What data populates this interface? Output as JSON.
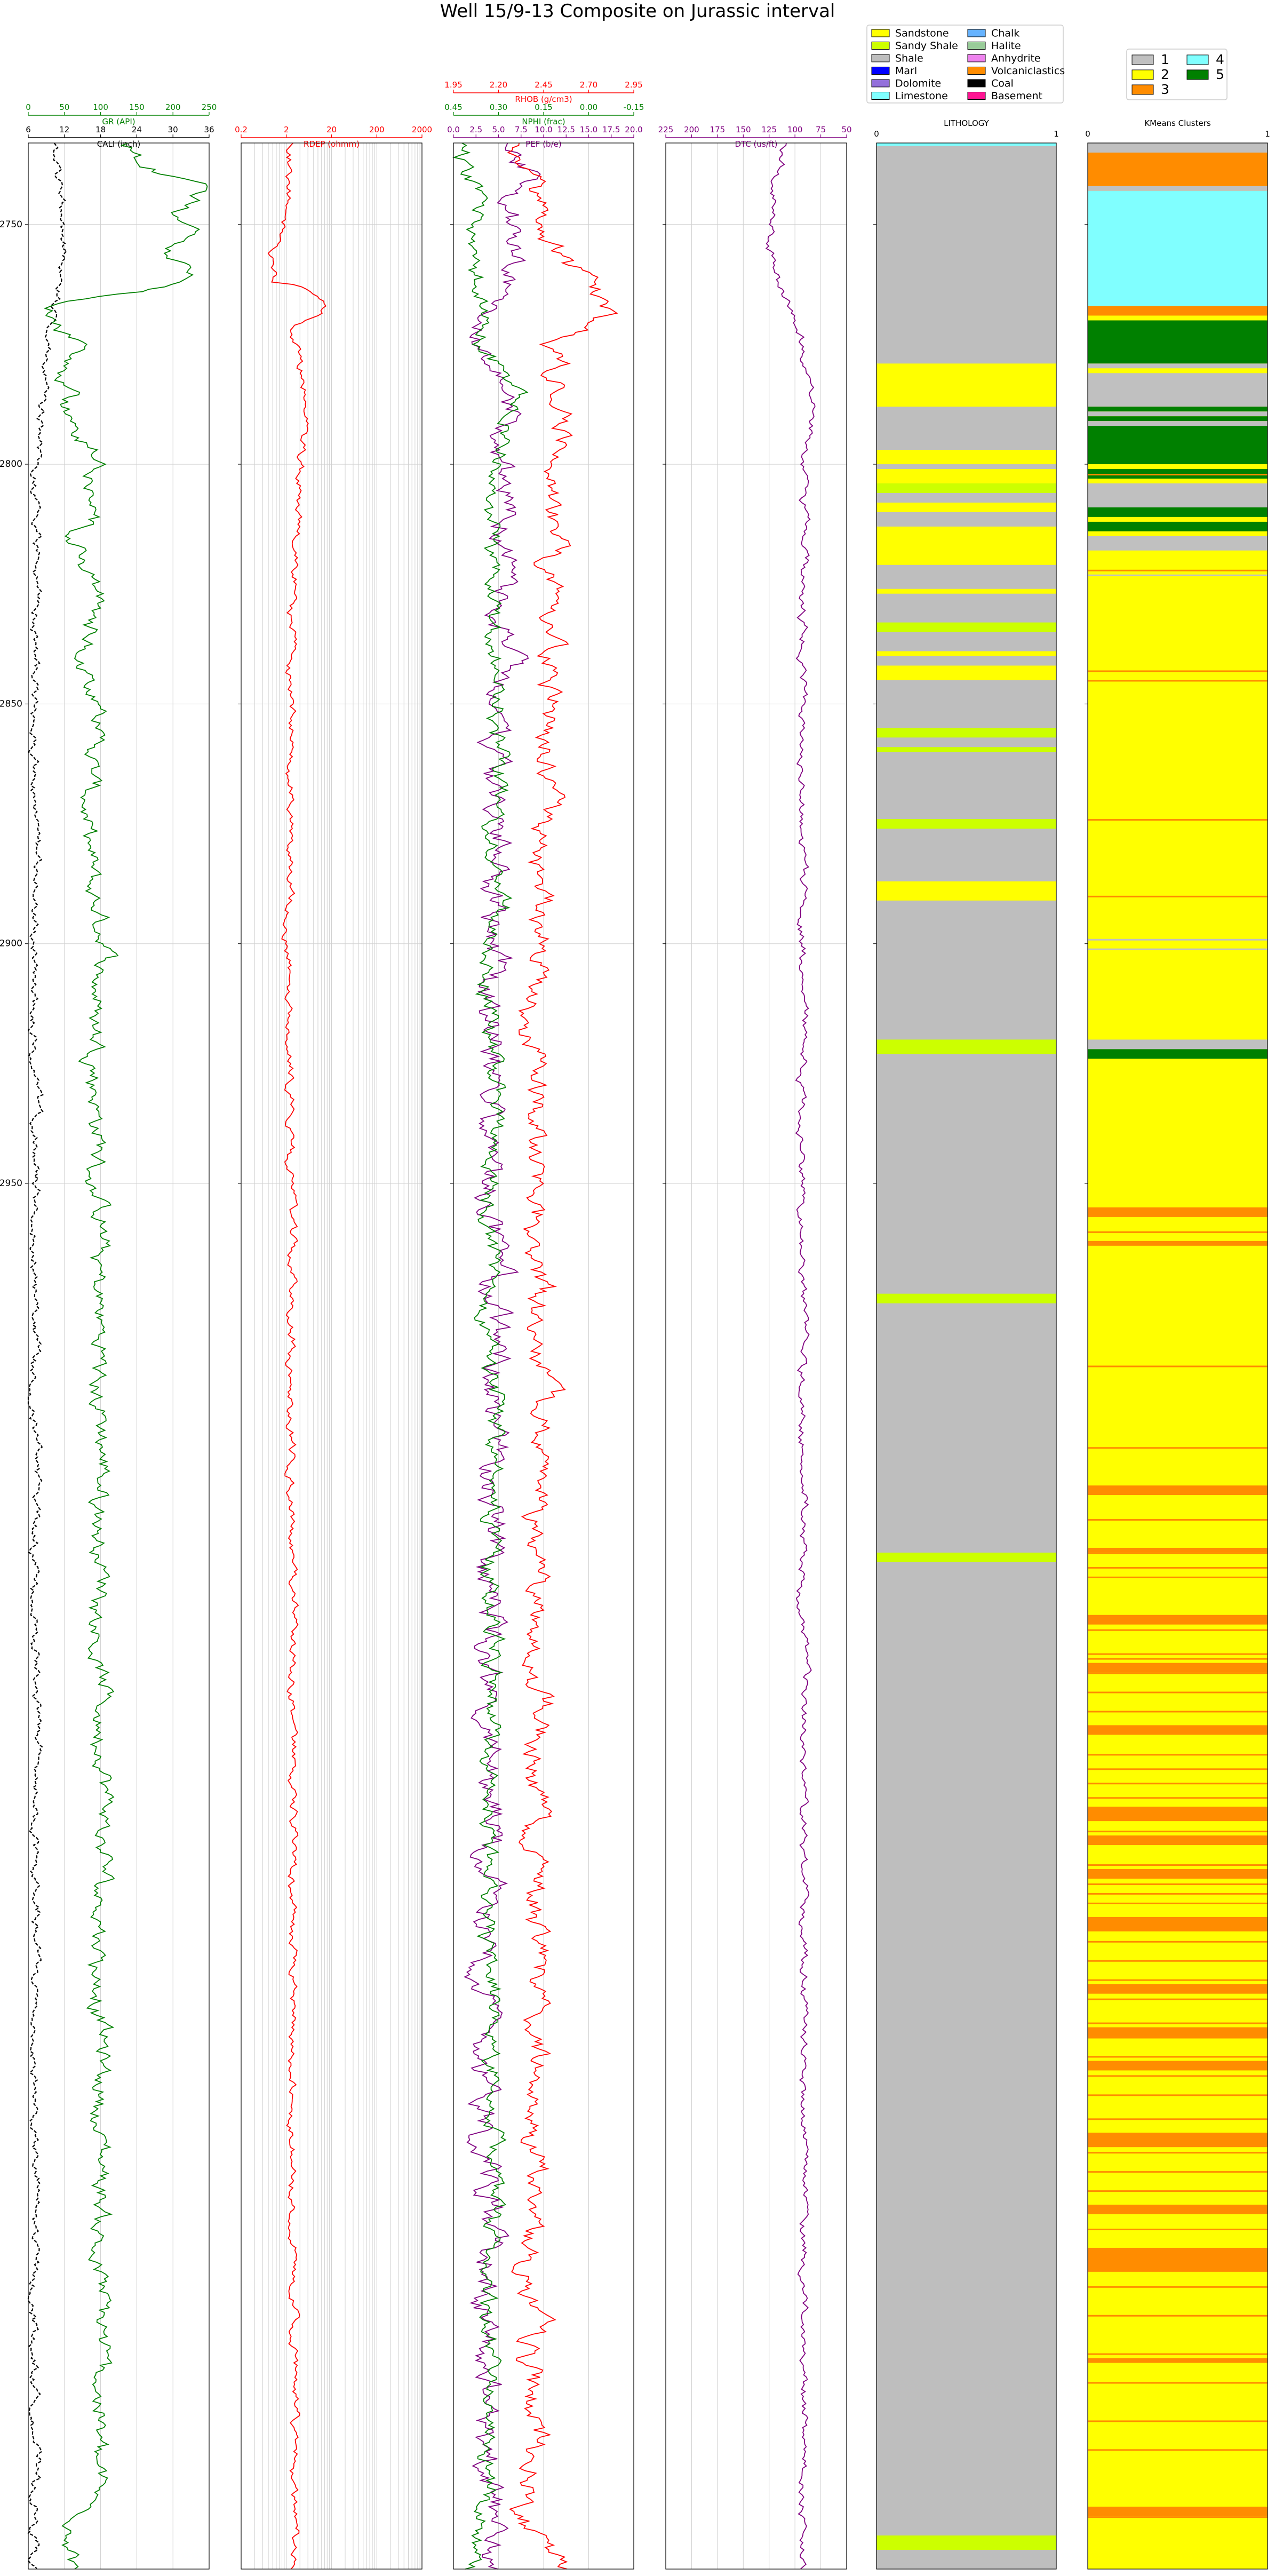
{
  "chart_data": {
    "type": "line",
    "title": "Well 15/9-13 Composite on Jurassic interval",
    "depth_axis": {
      "range": [
        2733,
        3239
      ],
      "ticks": [
        2750,
        2800,
        2850,
        2900,
        2950
      ],
      "grid": true
    },
    "tracks": [
      {
        "id": "gr",
        "curves": [
          {
            "name": "CALI (inch)",
            "color": "#000000",
            "dash": true,
            "xlim": [
              6,
              36
            ],
            "ticks": [
              "6",
              "12",
              "18",
              "24",
              "30",
              "36"
            ],
            "profile": [
              [
                2733,
                10
              ],
              [
                2740,
                11
              ],
              [
                2750,
                12
              ],
              [
                2760,
                12
              ],
              [
                2767,
                11
              ],
              [
                2775,
                9
              ],
              [
                2790,
                8
              ],
              [
                2800,
                7.5
              ],
              [
                2850,
                7
              ],
              [
                2900,
                7
              ],
              [
                2950,
                7
              ],
              [
                3000,
                7.3
              ],
              [
                3239,
                7
              ]
            ],
            "noise": 0.8
          },
          {
            "name": "GR (API)",
            "color": "#008000",
            "dash": false,
            "xlim": [
              0,
              250
            ],
            "ticks": [
              "0",
              "50",
              "100",
              "150",
              "200",
              "250"
            ],
            "profile": [
              [
                2733,
                135
              ],
              [
                2738,
                150
              ],
              [
                2742,
                240
              ],
              [
                2748,
                200
              ],
              [
                2752,
                225
              ],
              [
                2756,
                190
              ],
              [
                2761,
                225
              ],
              [
                2764,
                150
              ],
              [
                2766,
                40
              ],
              [
                2770,
                35
              ],
              [
                2775,
                70
              ],
              [
                2780,
                45
              ],
              [
                2785,
                55
              ],
              [
                2790,
                50
              ],
              [
                2795,
                80
              ],
              [
                2800,
                105
              ],
              [
                2805,
                90
              ],
              [
                2810,
                100
              ],
              [
                2815,
                70
              ],
              [
                2820,
                80
              ],
              [
                2830,
                95
              ],
              [
                2840,
                70
              ],
              [
                2850,
                100
              ],
              [
                2855,
                95
              ],
              [
                2870,
                80
              ],
              [
                2880,
                75
              ],
              [
                2900,
                100
              ],
              [
                2950,
                95
              ],
              [
                3000,
                100
              ],
              [
                3220,
                100
              ],
              [
                3230,
                70
              ],
              [
                3239,
                60
              ]
            ],
            "noise": 14
          }
        ]
      },
      {
        "id": "res",
        "curves": [
          {
            "name": "RDEP (ohmm)",
            "color": "#ff0000",
            "dash": false,
            "log": true,
            "xlim": [
              0.2,
              2000
            ],
            "ticks": [
              "0.2",
              "2",
              "20",
              "200",
              "2000"
            ],
            "profile": [
              [
                2733,
                2.5
              ],
              [
                2740,
                2
              ],
              [
                2748,
                2.2
              ],
              [
                2755,
                0.9
              ],
              [
                2762,
                1.1
              ],
              [
                2767,
                20
              ],
              [
                2771,
                3
              ],
              [
                2780,
                3.2
              ],
              [
                2785,
                6
              ],
              [
                2790,
                5
              ],
              [
                2800,
                4
              ],
              [
                2850,
                2.5
              ],
              [
                2900,
                2.4
              ],
              [
                2950,
                2.5
              ],
              [
                3000,
                2.6
              ],
              [
                3230,
                3
              ],
              [
                3239,
                2.8
              ]
            ],
            "noise": 0.1
          }
        ]
      },
      {
        "id": "dens",
        "curves": [
          {
            "name": "PEF (b/e)",
            "color": "#800080",
            "dash": false,
            "xlim": [
              0,
              20
            ],
            "ticks": [
              "0.0",
              "2.5",
              "5.0",
              "7.5",
              "10.0",
              "12.5",
              "15.0",
              "17.5",
              "20.0"
            ],
            "profile": [
              [
                2733,
                5
              ],
              [
                2740,
                9
              ],
              [
                2745,
                6
              ],
              [
                2755,
                7
              ],
              [
                2765,
                5
              ],
              [
                2775,
                3
              ],
              [
                2785,
                6
              ],
              [
                2795,
                5
              ],
              [
                2810,
                7
              ],
              [
                2820,
                5
              ],
              [
                2840,
                6
              ],
              [
                2850,
                5
              ],
              [
                2900,
                4
              ],
              [
                2950,
                4
              ],
              [
                3000,
                4
              ],
              [
                3239,
                4
              ]
            ],
            "noise": 1.6
          },
          {
            "name": "NPHI (frac)",
            "color": "#008000",
            "dash": false,
            "xlim": [
              0.45,
              -0.15
            ],
            "ticks": [
              "0.45",
              "0.30",
              "0.15",
              "0.00",
              "-0.15"
            ],
            "profile": [
              [
                2733,
                0.42
              ],
              [
                2745,
                0.37
              ],
              [
                2755,
                0.4
              ],
              [
                2765,
                0.35
              ],
              [
                2772,
                0.38
              ],
              [
                2785,
                0.22
              ],
              [
                2800,
                0.3
              ],
              [
                2820,
                0.33
              ],
              [
                2850,
                0.3
              ],
              [
                2900,
                0.31
              ],
              [
                2950,
                0.32
              ],
              [
                3000,
                0.32
              ],
              [
                3230,
                0.33
              ],
              [
                3239,
                0.39
              ]
            ],
            "noise": 0.035
          },
          {
            "name": "RHOB (g/cm3)",
            "color": "#ff0000",
            "dash": false,
            "xlim": [
              1.95,
              2.95
            ],
            "ticks": [
              "1.95",
              "2.20",
              "2.45",
              "2.70",
              "2.95"
            ],
            "profile": [
              [
                2733,
                2.35
              ],
              [
                2742,
                2.4
              ],
              [
                2750,
                2.38
              ],
              [
                2762,
                2.7
              ],
              [
                2768,
                2.8
              ],
              [
                2775,
                2.5
              ],
              [
                2785,
                2.55
              ],
              [
                2800,
                2.52
              ],
              [
                2820,
                2.5
              ],
              [
                2850,
                2.48
              ],
              [
                2870,
                2.45
              ],
              [
                2900,
                2.42
              ],
              [
                2950,
                2.4
              ],
              [
                3000,
                2.42
              ],
              [
                3230,
                2.38
              ],
              [
                3239,
                2.55
              ]
            ],
            "noise": 0.07
          }
        ]
      },
      {
        "id": "sonic",
        "curves": [
          {
            "name": "DTC (us/ft)",
            "color": "#800080",
            "dash": false,
            "xlim": [
              240,
              40
            ],
            "ticks": [
              "225",
              "200",
              "175",
              "150",
              "125",
              "100",
              "75",
              "50"
            ],
            "profile": [
              [
                2733,
                105
              ],
              [
                2740,
                120
              ],
              [
                2750,
                125
              ],
              [
                2760,
                120
              ],
              [
                2768,
                100
              ],
              [
                2775,
                90
              ],
              [
                2785,
                85
              ],
              [
                2790,
                80
              ],
              [
                2800,
                88
              ],
              [
                2850,
                88
              ],
              [
                2900,
                89
              ],
              [
                2950,
                90
              ],
              [
                3000,
                88
              ],
              [
                3239,
                88
              ]
            ],
            "noise": 5
          }
        ]
      }
    ],
    "lithology": {
      "label": "LITHOLOGY",
      "xlim": [
        "0",
        "1"
      ],
      "base": "Shale",
      "intervals": [
        [
          2733,
          2733.6,
          "Limestone"
        ],
        [
          2779,
          2788,
          "Sandstone"
        ],
        [
          2797,
          2800,
          "Sandstone"
        ],
        [
          2801,
          2804,
          "Sandstone"
        ],
        [
          2804,
          2806,
          "Sandy Shale"
        ],
        [
          2808,
          2810,
          "Sandstone"
        ],
        [
          2813,
          2821,
          "Sandstone"
        ],
        [
          2826,
          2827,
          "Sandstone"
        ],
        [
          2833,
          2835,
          "Sandy Shale"
        ],
        [
          2839,
          2840,
          "Sandstone"
        ],
        [
          2842,
          2845,
          "Sandstone"
        ],
        [
          2855,
          2857,
          "Sandy Shale"
        ],
        [
          2859,
          2860,
          "Sandy Shale"
        ],
        [
          2874,
          2876,
          "Sandy Shale"
        ],
        [
          2887,
          2891,
          "Sandstone"
        ],
        [
          2920,
          2923,
          "Sandy Shale"
        ],
        [
          2973,
          2975,
          "Sandy Shale"
        ],
        [
          3027,
          3029,
          "Sandy Shale"
        ],
        [
          3232,
          3235,
          "Sandy Shale"
        ]
      ]
    },
    "kmeans": {
      "label": "KMeans Clusters",
      "xlim": [
        "0",
        "1"
      ],
      "clusters": [
        {
          "id": "1",
          "color": "#c0c0c0"
        },
        {
          "id": "2",
          "color": "#ffff00"
        },
        {
          "id": "3",
          "color": "#ff8c00"
        },
        {
          "id": "4",
          "color": "#80ffff"
        },
        {
          "id": "5",
          "color": "#008000"
        }
      ],
      "intervals": [
        [
          2733,
          2735,
          "1"
        ],
        [
          2735,
          2742,
          "3"
        ],
        [
          2742,
          2743,
          "1"
        ],
        [
          2743,
          2767,
          "4"
        ],
        [
          2767,
          2769,
          "3"
        ],
        [
          2770,
          2779,
          "5"
        ],
        [
          2779,
          2780,
          "1"
        ],
        [
          2780,
          2781,
          "2"
        ],
        [
          2781,
          2788,
          "1"
        ],
        [
          2788,
          2789,
          "5"
        ],
        [
          2789,
          2790,
          "1"
        ],
        [
          2790,
          2791,
          "5"
        ],
        [
          2791,
          2792,
          "1"
        ],
        [
          2792,
          2800,
          "5"
        ],
        [
          2800,
          2801,
          "2"
        ],
        [
          2801,
          2803,
          "5"
        ],
        [
          2803,
          2804,
          "2"
        ],
        [
          2804,
          2809,
          "1"
        ],
        [
          2809,
          2811,
          "5"
        ],
        [
          2811,
          2812,
          "2"
        ],
        [
          2812,
          2814,
          "5"
        ],
        [
          2814,
          2815,
          "2"
        ],
        [
          2815,
          2818,
          "1"
        ],
        [
          2818,
          2920,
          "2"
        ],
        [
          2920,
          2922,
          "1"
        ],
        [
          2922,
          2924,
          "5"
        ]
      ],
      "stripes": [
        2802,
        2822,
        2843,
        2845,
        2874,
        2890,
        2960,
        2988,
        3005,
        3020,
        3027,
        3030,
        3032,
        3041,
        3043,
        3048,
        3049,
        3052,
        3056,
        3060,
        3064,
        3069,
        3072,
        3075,
        3078,
        3082,
        3085,
        3092,
        3096,
        3098,
        3100,
        3105,
        3108,
        3112,
        3116,
        3120,
        3125,
        3128,
        3132,
        3136,
        3140,
        3145,
        3148,
        3152,
        3156,
        3160,
        3168,
        3175,
        3180,
        3186,
        3194,
        3200,
        3208,
        3214,
        3226,
        3228
      ],
      "stripe_gray": [
        2823,
        2899,
        2901
      ],
      "orange_blocks": [
        [
          2955,
          2957
        ],
        [
          2962,
          2963
        ],
        [
          3013,
          3015
        ],
        [
          3026,
          3027
        ],
        [
          3040,
          3042
        ],
        [
          3050,
          3052
        ],
        [
          3063,
          3065
        ],
        [
          3080,
          3083
        ],
        [
          3086,
          3088
        ],
        [
          3093,
          3095
        ],
        [
          3103,
          3106
        ],
        [
          3117,
          3119
        ],
        [
          3126,
          3128
        ],
        [
          3133,
          3135
        ],
        [
          3148,
          3151
        ],
        [
          3163,
          3165
        ],
        [
          3172,
          3177
        ],
        [
          3195,
          3196
        ],
        [
          3226,
          3228
        ]
      ]
    },
    "lithology_legend": [
      {
        "name": "Sandstone",
        "color": "#ffff00"
      },
      {
        "name": "Chalk",
        "color": "#66b3ff"
      },
      {
        "name": "Sandy Shale",
        "color": "#ccff00"
      },
      {
        "name": "Halite",
        "color": "#99cc99"
      },
      {
        "name": "Shale",
        "color": "#bebebe"
      },
      {
        "name": "Anhydrite",
        "color": "#ee82ee"
      },
      {
        "name": "Marl",
        "color": "#0000ff"
      },
      {
        "name": "Volcaniclastics",
        "color": "#ff8c00"
      },
      {
        "name": "Dolomite",
        "color": "#9370db"
      },
      {
        "name": "Coal",
        "color": "#000000"
      },
      {
        "name": "Limestone",
        "color": "#80ffff"
      },
      {
        "name": "Basement",
        "color": "#ff1493"
      }
    ]
  }
}
